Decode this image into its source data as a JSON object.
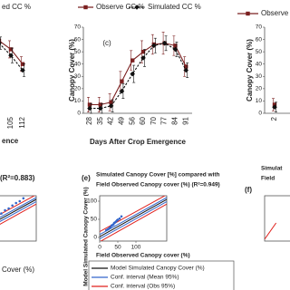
{
  "chart_data": [
    {
      "type": "line",
      "x_label": "ence",
      "categories": [
        null,
        "105",
        "112"
      ],
      "ylim": [
        0,
        70
      ],
      "series": [
        {
          "color": "#7b2020",
          "marker": "square",
          "dash": false,
          "values": [
            59,
            52,
            40
          ],
          "errors": [
            6,
            7,
            6
          ]
        },
        {
          "name": "ed CC %",
          "color": "#111111",
          "marker": "diamond",
          "dash": true,
          "values": [
            57,
            47,
            35
          ],
          "errors": [
            5,
            6,
            5
          ]
        }
      ]
    },
    {
      "type": "line",
      "title": "(c)",
      "x_label": "Days After Crop Emergence",
      "y_label": "Canopy Cover (%)",
      "categories": [
        "28",
        "35",
        "42",
        "49",
        "56",
        "60",
        "70",
        "77",
        "84",
        "91"
      ],
      "ylim": [
        0,
        70
      ],
      "yticks": [
        0,
        10,
        20,
        30,
        40,
        50,
        60,
        70
      ],
      "series": [
        {
          "name": "Observe CC %",
          "color": "#7b2020",
          "marker": "square",
          "dash": false,
          "values": [
            7,
            7,
            9,
            26,
            43,
            50,
            56,
            57,
            55,
            38
          ],
          "errors": [
            6,
            6,
            7,
            8,
            8,
            9,
            8,
            9,
            8,
            8
          ]
        },
        {
          "name": "Simulated CC %",
          "color": "#111111",
          "marker": "diamond",
          "dash": true,
          "values": [
            4,
            4,
            6,
            18,
            32,
            45,
            55,
            57,
            52,
            35
          ],
          "errors": [
            4,
            4,
            5,
            6,
            7,
            7,
            6,
            6,
            6,
            6
          ]
        }
      ]
    },
    {
      "type": "line",
      "y_label": "Canopy Cover (%)",
      "categories": [
        "2"
      ],
      "ylim": [
        0,
        70
      ],
      "yticks": [
        0,
        10,
        20,
        30,
        40,
        50,
        60,
        70
      ],
      "series": [
        {
          "name": "Observe CC",
          "color": "#7b2020",
          "marker": "square",
          "dash": false,
          "values": [
            7
          ],
          "errors": [
            5
          ]
        },
        {
          "color": "#111111",
          "marker": "diamond",
          "dash": true,
          "values": [
            5
          ],
          "errors": [
            4
          ]
        }
      ]
    },
    {
      "type": "scatter",
      "title": "(R²=0.883)",
      "xlim": [
        0,
        185
      ],
      "ylim": [
        -10,
        115
      ],
      "points": {
        "color": "#3366cc",
        "x": [
          80,
          90,
          100,
          110,
          120,
          130,
          140,
          150
        ],
        "values": [
          60,
          66,
          75,
          80,
          88,
          95,
          100,
          108
        ]
      },
      "series": [
        {
          "name": "Cover (%)",
          "color": "#111111",
          "x": [
            0,
            185
          ],
          "values": [
            2,
            105
          ]
        },
        {
          "color": "#3366cc",
          "x": [
            0,
            185
          ],
          "values": [
            8,
            110
          ],
          "lower": [
            -4,
            99
          ]
        },
        {
          "color": "#e0201c",
          "x": [
            0,
            185
          ],
          "values": [
            16,
            118
          ],
          "lower": [
            -12,
            92
          ]
        }
      ]
    },
    {
      "type": "scatter",
      "title": "(e)",
      "subtitle": [
        "Simulated Canopy Cover [%] compared with",
        "Field Observed Canopy cover (%) (R²=0.949)"
      ],
      "x_label": "Field Observed Canopy cover (%)",
      "y_label": "Model Simulated Canopy Cover (%)",
      "xlim": [
        0,
        185
      ],
      "ylim": [
        -10,
        115
      ],
      "xticks": [
        0,
        50,
        100
      ],
      "yticks": [
        0,
        50,
        100
      ],
      "points": {
        "color": "#3366cc",
        "x": [
          18,
          22,
          25,
          28,
          30,
          33,
          35,
          38,
          40,
          42,
          45,
          48,
          50,
          55,
          60
        ],
        "values": [
          20,
          22,
          24,
          27,
          28,
          33,
          34,
          36,
          40,
          41,
          44,
          47,
          49,
          52,
          58
        ]
      },
      "series": [
        {
          "name": "Model Simulated Canopy Cover (%)",
          "color": "#111111",
          "x": [
            0,
            185
          ],
          "values": [
            2,
            105
          ]
        },
        {
          "name": "Conf. interval (Mean 95%)",
          "color": "#3366cc",
          "x": [
            0,
            185
          ],
          "values": [
            8,
            110
          ],
          "lower": [
            -4,
            99
          ]
        },
        {
          "name": "Conf. interval (Obs 95%)",
          "color": "#e0201c",
          "x": [
            0,
            185
          ],
          "values": [
            16,
            118
          ],
          "lower": [
            -12,
            92
          ]
        }
      ]
    },
    {
      "type": "scatter",
      "title": "(f)",
      "subtitle": [
        "Simulat",
        "Field"
      ],
      "xlim": [
        0,
        185
      ],
      "ylim": [
        -10,
        115
      ],
      "series": [
        {
          "color": "#e0201c",
          "x": [
            0,
            30
          ],
          "values": [
            -5,
            40
          ]
        }
      ]
    }
  ]
}
